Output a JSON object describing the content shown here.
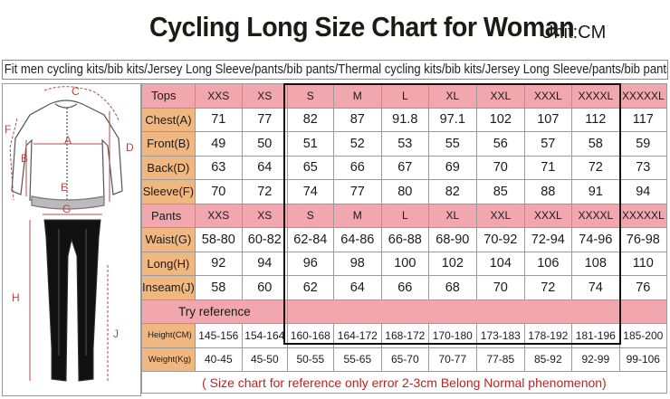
{
  "header": {
    "title": "Cycling Long Size Chart for Woman",
    "unit": "Unit:CM"
  },
  "subtitle": "Fit men cycling kits/bib kits/Jersey Long Sleeve/pants/bib pants/Thermal cycling kits/bib kits/Jersey Long Sleeve/pants/bib pants",
  "sizes": [
    "XXS",
    "XS",
    "S",
    "M",
    "L",
    "XL",
    "XXL",
    "XXXL",
    "XXXXL",
    "XXXXXL"
  ],
  "tops": {
    "label": "Tops",
    "rows": [
      {
        "label": "Chest(A)",
        "values": [
          "71",
          "77",
          "82",
          "87",
          "91.8",
          "97.1",
          "102",
          "107",
          "112",
          "117"
        ]
      },
      {
        "label": "Front(B)",
        "values": [
          "49",
          "50",
          "51",
          "52",
          "53",
          "55",
          "56",
          "57",
          "58",
          "59"
        ]
      },
      {
        "label": "Back(D)",
        "values": [
          "63",
          "64",
          "65",
          "66",
          "67",
          "69",
          "70",
          "71",
          "72",
          "73"
        ]
      },
      {
        "label": "Sleeve(F)",
        "values": [
          "70",
          "72",
          "74",
          "77",
          "80",
          "82",
          "85",
          "88",
          "91",
          "94"
        ]
      }
    ]
  },
  "pants": {
    "label": "Pants",
    "rows": [
      {
        "label": "Waist(G)",
        "values": [
          "58-80",
          "60-82",
          "62-84",
          "64-86",
          "66-88",
          "68-90",
          "70-92",
          "72-94",
          "74-96",
          "76-98"
        ]
      },
      {
        "label": "Long(H)",
        "values": [
          "92",
          "94",
          "96",
          "98",
          "100",
          "102",
          "104",
          "106",
          "108",
          "110"
        ]
      },
      {
        "label": "Inseam(J)",
        "values": [
          "58",
          "60",
          "62",
          "64",
          "66",
          "68",
          "70",
          "72",
          "74",
          "76"
        ]
      }
    ]
  },
  "try_reference": {
    "label": "Try reference",
    "rows": [
      {
        "label": "Height(CM)",
        "values": [
          "145-156",
          "154-164",
          "160-168",
          "164-172",
          "168-172",
          "170-180",
          "173-183",
          "178-192",
          "181-196",
          "185-200"
        ]
      },
      {
        "label": "Weight(Kg)",
        "values": [
          "40-45",
          "45-50",
          "50-55",
          "55-65",
          "65-70",
          "70-77",
          "77-85",
          "85-92",
          "92-99",
          "99-106"
        ]
      }
    ]
  },
  "note": "( Size chart for reference only  error 2-3cm  Belong Normal phenomenon)",
  "figure": {
    "jersey_labels": [
      "A",
      "B",
      "C",
      "D",
      "E",
      "F"
    ],
    "pants_labels": [
      "G",
      "H",
      "J"
    ]
  },
  "colors": {
    "label_bg": "#f0b880",
    "header_bg": "#f2a6ae",
    "note_text": "#c02020"
  }
}
